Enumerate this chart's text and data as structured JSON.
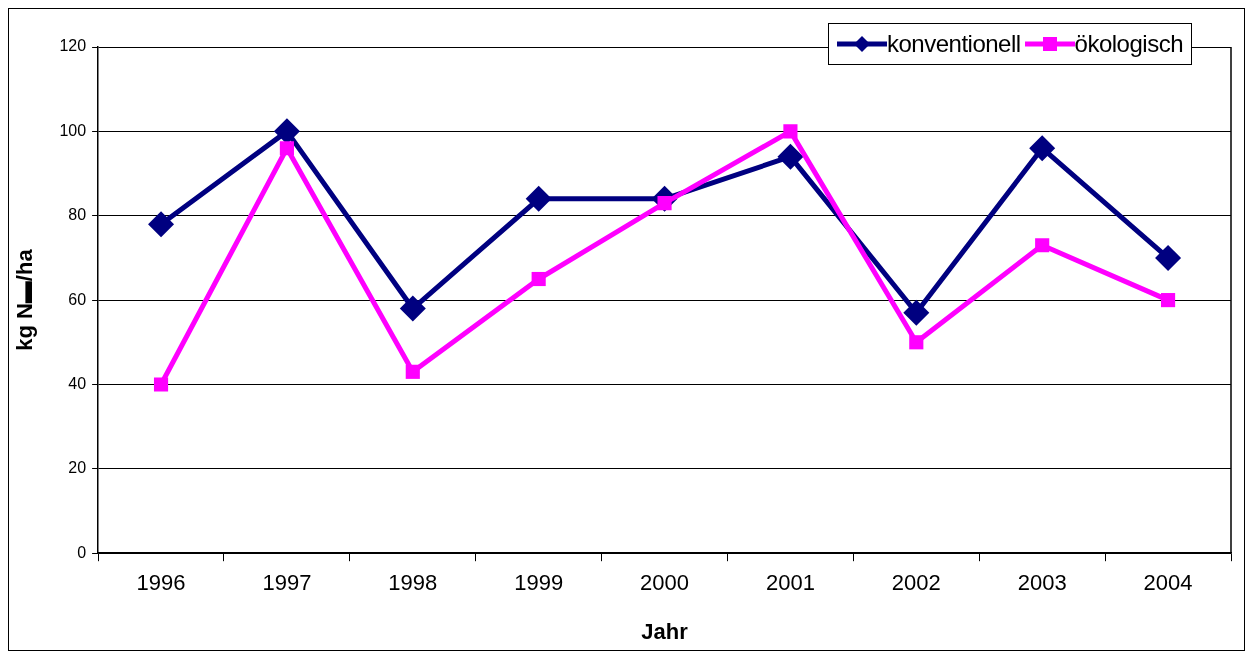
{
  "chart_data": {
    "type": "line",
    "xlabel": "Jahr",
    "ylabel": "kg N▬/ha",
    "categories": [
      "1996",
      "1997",
      "1998",
      "1999",
      "2000",
      "2001",
      "2002",
      "2003",
      "2004"
    ],
    "series": [
      {
        "name": "konventionell",
        "color": "#000080",
        "marker": "diamond",
        "values": [
          78,
          100,
          58,
          84,
          84,
          94,
          57,
          96,
          70
        ]
      },
      {
        "name": "ökologisch",
        "color": "#ff00ff",
        "marker": "square",
        "values": [
          40,
          96,
          43,
          65,
          83,
          100,
          50,
          73,
          60
        ]
      }
    ],
    "ylim": [
      0,
      120
    ],
    "yticks": [
      0,
      20,
      40,
      60,
      80,
      100,
      120
    ],
    "grid": "y",
    "legend": "top right",
    "line_style": "solid"
  }
}
